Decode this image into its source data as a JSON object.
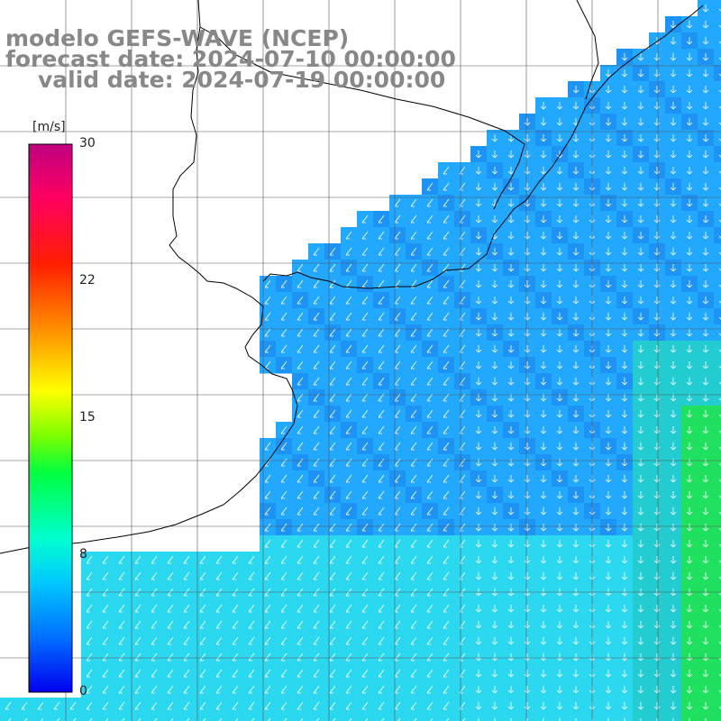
{
  "titles": {
    "model": "modelo GEFS-WAVE (NCEP)",
    "forecast": "forecast date: 2024-07-10 00:00:00",
    "valid": "valid date: 2024-07-19 00:00:00"
  },
  "colorbar": {
    "unit": "[m/s]",
    "min": 0,
    "max": 30,
    "ticks": [
      {
        "value": 30,
        "label": "30"
      },
      {
        "value": 22,
        "label": "22"
      },
      {
        "value": 15,
        "label": "15"
      },
      {
        "value": 8,
        "label": "8"
      },
      {
        "value": 0,
        "label": "0"
      }
    ],
    "colors": [
      "#0000f0",
      "#0070ff",
      "#00c8ff",
      "#00ffd0",
      "#00ff40",
      "#80ff00",
      "#ffff00",
      "#ff9000",
      "#ff2000",
      "#ff0060",
      "#c00080"
    ]
  },
  "map": {
    "variable": "wind speed and direction",
    "land_color": "#ffffff",
    "coast_color": "#000000",
    "grid_color": "#555555",
    "arrow_color": "#ffffff",
    "wind_direction": "from north-east toward south / south-west",
    "speed_range_ms": [
      7,
      13
    ]
  }
}
